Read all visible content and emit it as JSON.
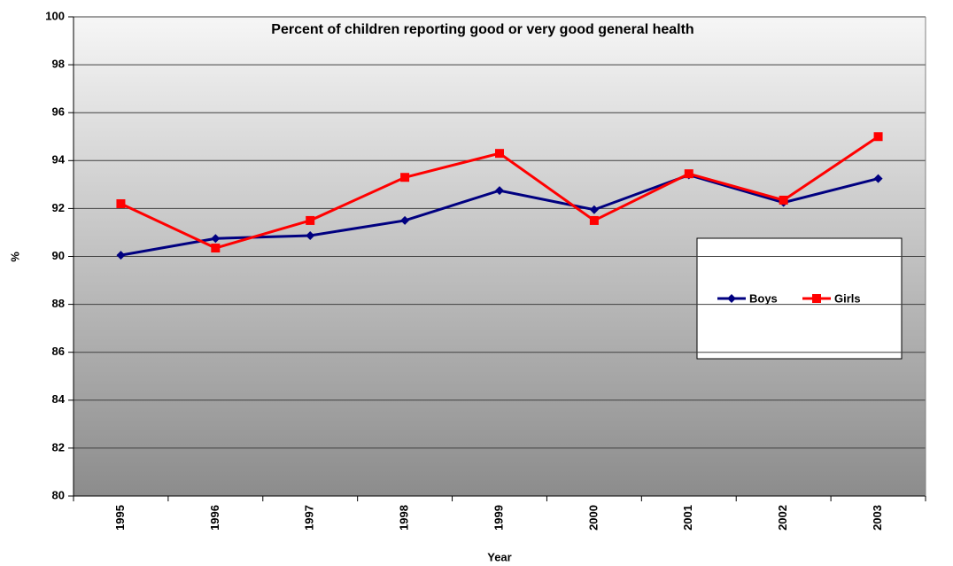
{
  "chart_data": {
    "type": "line",
    "title": "Percent of children reporting good or very good general health",
    "x_label": "Year",
    "y_label": "%",
    "categories": [
      "1995",
      "1996",
      "1997",
      "1998",
      "1999",
      "2000",
      "2001",
      "2002",
      "2003"
    ],
    "series": [
      {
        "name": "Boys",
        "color": "#000080",
        "marker": "diamond",
        "values": [
          90.05,
          90.75,
          90.87,
          91.5,
          92.75,
          91.95,
          93.4,
          92.25,
          93.25
        ]
      },
      {
        "name": "Girls",
        "color": "#ff0000",
        "marker": "square",
        "values": [
          92.2,
          90.35,
          91.5,
          93.3,
          94.3,
          91.5,
          93.45,
          92.35,
          95.0
        ]
      }
    ],
    "ylim": [
      80,
      100
    ],
    "yticks": [
      80,
      82,
      84,
      86,
      88,
      90,
      92,
      94,
      96,
      98,
      100
    ],
    "grid": true
  }
}
